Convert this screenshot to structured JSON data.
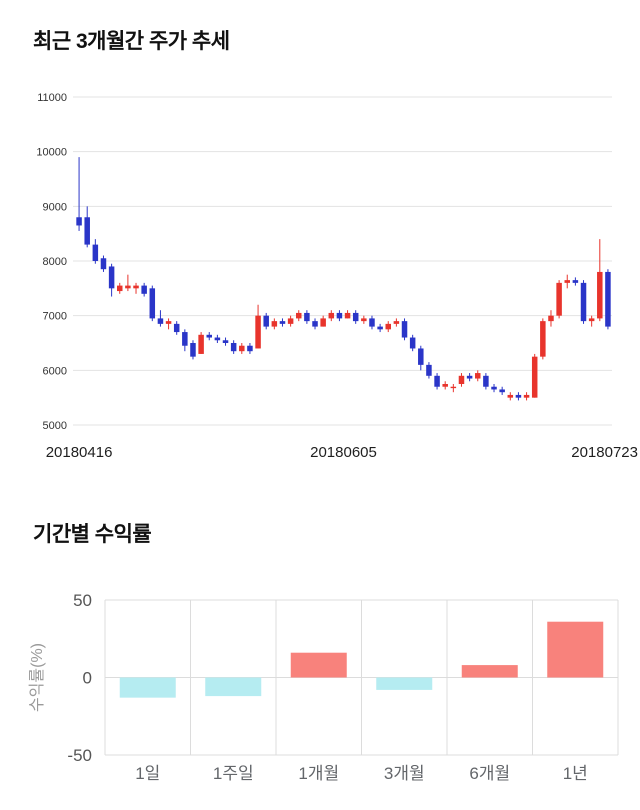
{
  "chart_data": [
    {
      "type": "candlestick",
      "title": "최근 3개월간 주가 추세",
      "ylim": [
        5000,
        11000
      ],
      "y_ticks": [
        11000,
        10000,
        9000,
        8000,
        7000,
        6000,
        5000
      ],
      "x_tick_labels": [
        "20180416",
        "20180605",
        "20180723"
      ],
      "grid": true,
      "legend": "none",
      "up_color": "#e8342c",
      "down_color": "#2a35c8",
      "grid_color": "#e3e3e3",
      "candles": [
        [
          8800,
          9900,
          8550,
          8650
        ],
        [
          8800,
          9000,
          8250,
          8300
        ],
        [
          8300,
          8400,
          7950,
          8000
        ],
        [
          8050,
          8100,
          7800,
          7850
        ],
        [
          7900,
          7950,
          7350,
          7500
        ],
        [
          7450,
          7600,
          7400,
          7550
        ],
        [
          7500,
          7750,
          7450,
          7550
        ],
        [
          7500,
          7600,
          7400,
          7550
        ],
        [
          7550,
          7600,
          7350,
          7400
        ],
        [
          7500,
          7550,
          6900,
          6950
        ],
        [
          6950,
          7100,
          6800,
          6850
        ],
        [
          6850,
          6950,
          6750,
          6900
        ],
        [
          6850,
          6900,
          6650,
          6700
        ],
        [
          6700,
          6750,
          6350,
          6450
        ],
        [
          6500,
          6550,
          6200,
          6250
        ],
        [
          6300,
          6700,
          6300,
          6650
        ],
        [
          6650,
          6700,
          6550,
          6600
        ],
        [
          6600,
          6650,
          6500,
          6550
        ],
        [
          6550,
          6600,
          6450,
          6500
        ],
        [
          6500,
          6550,
          6300,
          6350
        ],
        [
          6350,
          6500,
          6300,
          6450
        ],
        [
          6450,
          6500,
          6300,
          6350
        ],
        [
          6400,
          7200,
          6400,
          7000
        ],
        [
          7000,
          7050,
          6750,
          6800
        ],
        [
          6800,
          6950,
          6750,
          6900
        ],
        [
          6900,
          6950,
          6800,
          6850
        ],
        [
          6850,
          7000,
          6800,
          6950
        ],
        [
          6950,
          7100,
          6900,
          7050
        ],
        [
          7050,
          7100,
          6850,
          6900
        ],
        [
          6900,
          6950,
          6750,
          6800
        ],
        [
          6800,
          7000,
          6800,
          6950
        ],
        [
          6950,
          7100,
          6900,
          7050
        ],
        [
          7050,
          7100,
          6900,
          6950
        ],
        [
          6950,
          7100,
          6950,
          7050
        ],
        [
          7050,
          7100,
          6850,
          6900
        ],
        [
          6900,
          7000,
          6850,
          6950
        ],
        [
          6950,
          7000,
          6750,
          6800
        ],
        [
          6800,
          6850,
          6700,
          6750
        ],
        [
          6750,
          6900,
          6700,
          6850
        ],
        [
          6850,
          6950,
          6800,
          6900
        ],
        [
          6900,
          6950,
          6550,
          6600
        ],
        [
          6600,
          6650,
          6350,
          6400
        ],
        [
          6400,
          6450,
          6000,
          6100
        ],
        [
          6100,
          6150,
          5850,
          5900
        ],
        [
          5900,
          5950,
          5650,
          5700
        ],
        [
          5700,
          5800,
          5650,
          5750
        ],
        [
          5700,
          5750,
          5600,
          5700
        ],
        [
          5750,
          5950,
          5700,
          5900
        ],
        [
          5900,
          5950,
          5800,
          5850
        ],
        [
          5850,
          6000,
          5800,
          5950
        ],
        [
          5900,
          5950,
          5650,
          5700
        ],
        [
          5700,
          5750,
          5600,
          5650
        ],
        [
          5650,
          5700,
          5550,
          5600
        ],
        [
          5500,
          5600,
          5450,
          5550
        ],
        [
          5550,
          5600,
          5450,
          5500
        ],
        [
          5500,
          5600,
          5450,
          5550
        ],
        [
          5500,
          6300,
          5500,
          6250
        ],
        [
          6250,
          6950,
          6200,
          6900
        ],
        [
          6900,
          7100,
          6800,
          7000
        ],
        [
          7000,
          7650,
          6950,
          7600
        ],
        [
          7600,
          7750,
          7500,
          7650
        ],
        [
          7650,
          7700,
          7550,
          7600
        ],
        [
          7600,
          7650,
          6850,
          6900
        ],
        [
          6900,
          7000,
          6800,
          6950
        ],
        [
          6950,
          8400,
          6900,
          7800
        ],
        [
          7800,
          7850,
          6750,
          6800
        ]
      ]
    },
    {
      "type": "bar",
      "title": "기간별 수익률",
      "ylabel": "수익률(%)",
      "categories": [
        "1일",
        "1주일",
        "1개월",
        "3개월",
        "6개월",
        "1년"
      ],
      "values": [
        -13,
        -12,
        16,
        -8,
        8,
        36
      ],
      "ylim": [
        -50,
        50
      ],
      "y_ticks": [
        50,
        0,
        -50
      ],
      "grid": true,
      "legend": "none",
      "positive_color": "#f8827c",
      "negative_color": "#b5ecf1",
      "grid_color": "#dcdcdc"
    }
  ]
}
